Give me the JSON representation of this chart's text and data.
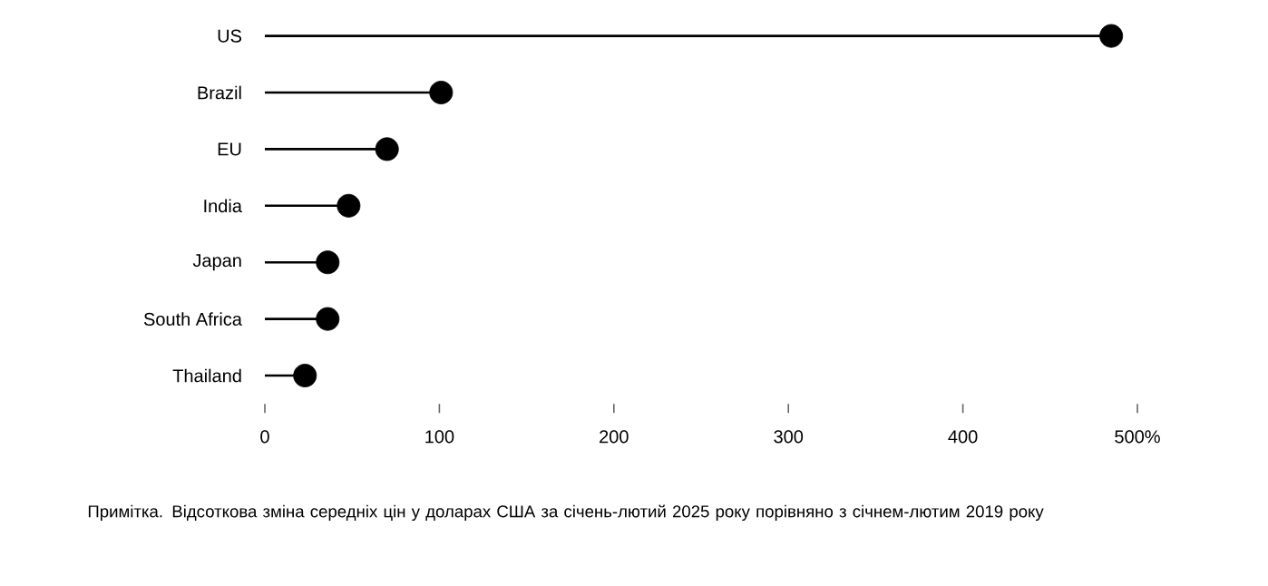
{
  "chart_data": {
    "type": "lollipop",
    "orientation": "horizontal",
    "categories": [
      "US",
      "Brazil",
      "EU",
      "India",
      "Japan",
      "South Africa",
      "Thailand"
    ],
    "values": [
      485,
      101,
      70,
      48,
      36,
      36,
      23
    ],
    "color": "#000000",
    "marker": "circle",
    "xlim": [
      0,
      500
    ],
    "xticks": [
      0,
      100,
      200,
      300,
      400,
      {
        "value": 500,
        "label": "500%"
      }
    ],
    "annotations": [
      "Примітка. Відсоткова зміна середніх цін у доларах США за січень-лютий 2025 року порівняно з січнем-лютим 2019 року"
    ]
  }
}
